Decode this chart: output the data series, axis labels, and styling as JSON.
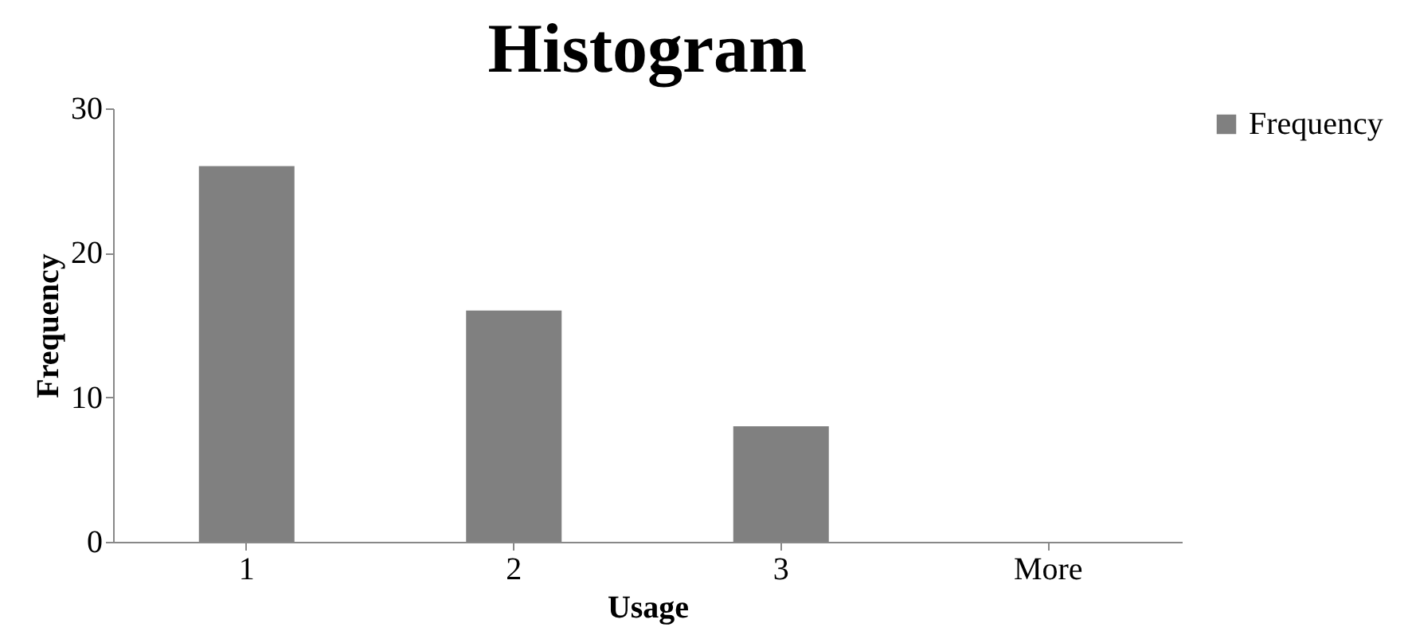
{
  "chart_data": {
    "type": "bar",
    "title": "Histogram",
    "xlabel": "Usage",
    "ylabel": "Frequency",
    "categories": [
      "1",
      "2",
      "3",
      "More"
    ],
    "series": [
      {
        "name": "Frequency",
        "color": "#808080",
        "values": [
          26,
          16,
          8,
          0
        ]
      }
    ],
    "ylim": [
      0,
      30
    ],
    "yticks": [
      0,
      10,
      20,
      30
    ],
    "legend": "right"
  }
}
